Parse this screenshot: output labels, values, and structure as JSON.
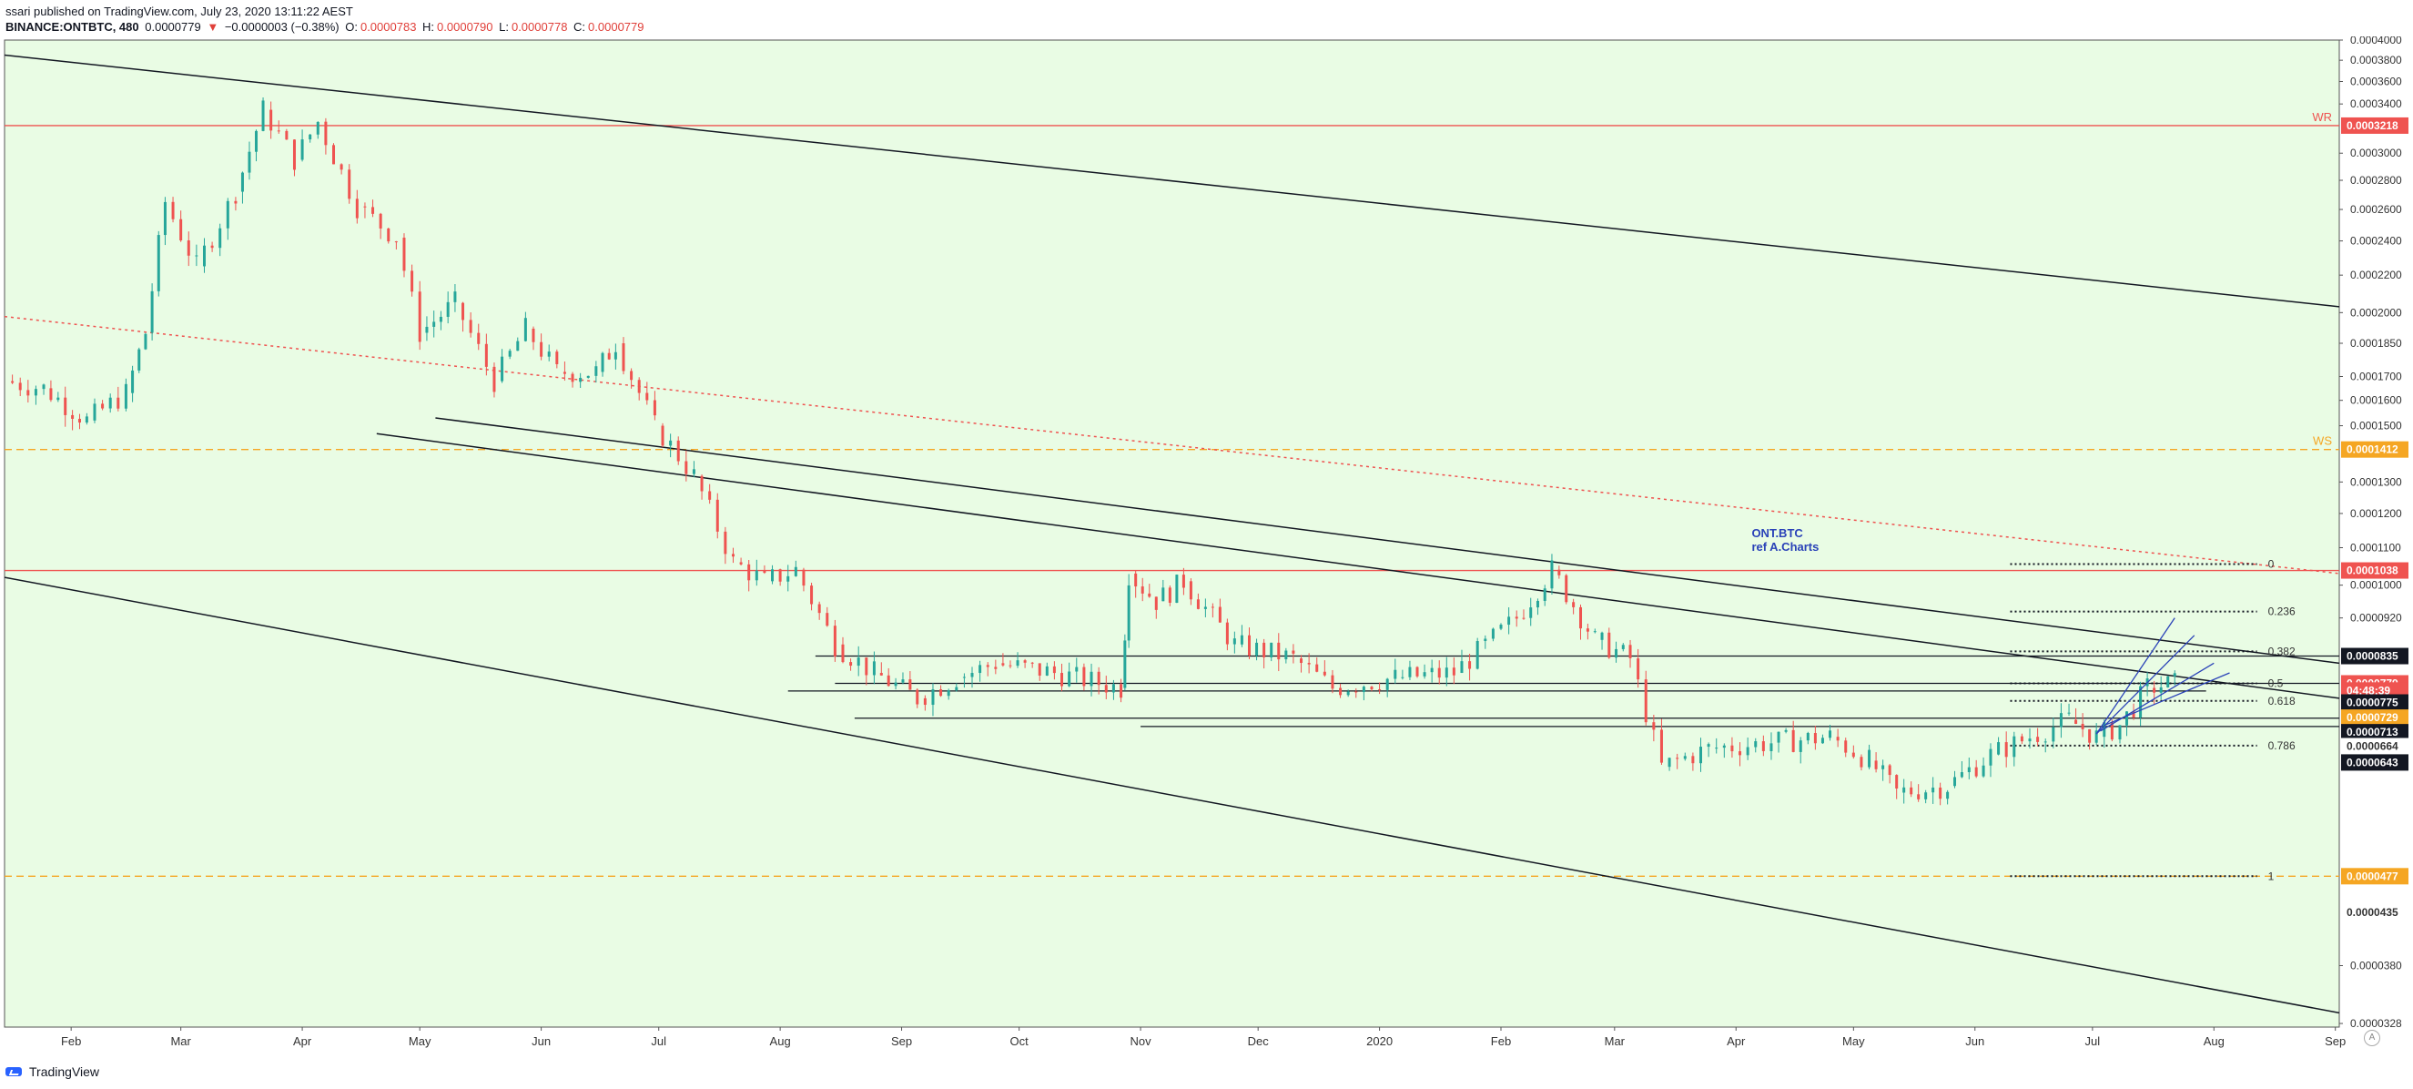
{
  "header": {
    "published": "ssari published on TradingView.com, July 23, 2020 13:11:22 AEST",
    "symbol": "BINANCE:ONTBTC, 480",
    "last": "0.0000779",
    "arrow": "▼",
    "change": "−0.0000003 (−0.38%)",
    "o_label": "O:",
    "o_value": "0.0000783",
    "h_label": "H:",
    "h_value": "0.0000790",
    "l_label": "L:",
    "l_value": "0.0000778",
    "c_label": "C:",
    "c_value": "0.0000779"
  },
  "footer": {
    "brand": "TradingView",
    "auto_label": "A"
  },
  "colors": {
    "background": "#e9fce4",
    "red": "#ef5350",
    "orange": "#f5a623",
    "black": "#131722",
    "blue": "#2a42b8",
    "up": "#26a69a",
    "down": "#ef5350"
  },
  "chart_data": {
    "type": "line",
    "title": "",
    "y_scale": "log",
    "y_range": [
      3.25e-05,
      0.0004
    ],
    "x_range": [
      "2019-01-15",
      "2020-09-02"
    ],
    "y_ticks": [
      "0.0004000",
      "0.0003800",
      "0.0003600",
      "0.0003400",
      "0.0003000",
      "0.0002800",
      "0.0002600",
      "0.0002400",
      "0.0002200",
      "0.0002000",
      "0.0001850",
      "0.0001700",
      "0.0001600",
      "0.0001500",
      "0.0001300",
      "0.0001200",
      "0.0001100",
      "0.0001000",
      "0.0000920",
      "0.0000380",
      "0.0000328"
    ],
    "x_ticks": [
      {
        "label": "Feb",
        "date": "2019-02-01"
      },
      {
        "label": "Mar",
        "date": "2019-03-01"
      },
      {
        "label": "Apr",
        "date": "2019-04-01"
      },
      {
        "label": "May",
        "date": "2019-05-01"
      },
      {
        "label": "Jun",
        "date": "2019-06-01"
      },
      {
        "label": "Jul",
        "date": "2019-07-01"
      },
      {
        "label": "Aug",
        "date": "2019-08-01"
      },
      {
        "label": "Sep",
        "date": "2019-09-01"
      },
      {
        "label": "Oct",
        "date": "2019-10-01"
      },
      {
        "label": "Nov",
        "date": "2019-11-01"
      },
      {
        "label": "Dec",
        "date": "2019-12-01"
      },
      {
        "label": "2020",
        "date": "2020-01-01"
      },
      {
        "label": "Feb",
        "date": "2020-02-01"
      },
      {
        "label": "Mar",
        "date": "2020-03-01"
      },
      {
        "label": "Apr",
        "date": "2020-04-01"
      },
      {
        "label": "May",
        "date": "2020-05-01"
      },
      {
        "label": "Jun",
        "date": "2020-06-01"
      },
      {
        "label": "Jul",
        "date": "2020-07-01"
      },
      {
        "label": "Aug",
        "date": "2020-08-01"
      },
      {
        "label": "Sep",
        "date": "2020-09-01"
      }
    ],
    "series": [
      {
        "values": [
          [
            "2019-01-15",
            0.000168
          ],
          [
            "2019-01-25",
            0.000165
          ],
          [
            "2019-02-05",
            0.000152
          ],
          [
            "2019-02-15",
            0.000163
          ],
          [
            "2019-02-20",
            0.00019
          ],
          [
            "2019-02-25",
            0.000265
          ],
          [
            "2019-03-05",
            0.000225
          ],
          [
            "2019-03-15",
            0.000272
          ],
          [
            "2019-03-22",
            0.000335
          ],
          [
            "2019-03-30",
            0.000295
          ],
          [
            "2019-04-05",
            0.000325
          ],
          [
            "2019-04-15",
            0.000262
          ],
          [
            "2019-04-25",
            0.000242
          ],
          [
            "2019-05-01",
            0.00019
          ],
          [
            "2019-05-10",
            0.000205
          ],
          [
            "2019-05-20",
            0.000168
          ],
          [
            "2019-05-28",
            0.000192
          ],
          [
            "2019-06-05",
            0.000172
          ],
          [
            "2019-06-15",
            0.000172
          ],
          [
            "2019-06-20",
            0.000185
          ],
          [
            "2019-06-30",
            0.00015
          ],
          [
            "2019-07-10",
            0.000132
          ],
          [
            "2019-07-20",
            0.000106
          ],
          [
            "2019-07-28",
            0.000101
          ],
          [
            "2019-08-05",
            0.000104
          ],
          [
            "2019-08-15",
            8.6e-05
          ],
          [
            "2019-08-25",
            8e-05
          ],
          [
            "2019-09-05",
            7.5e-05
          ],
          [
            "2019-09-15",
            7.9e-05
          ],
          [
            "2019-09-25",
            8.2e-05
          ],
          [
            "2019-10-10",
            8e-05
          ],
          [
            "2019-10-27",
            7.7e-05
          ],
          [
            "2019-10-29",
            0.000103
          ],
          [
            "2019-11-05",
            9.6e-05
          ],
          [
            "2019-11-12",
            0.000101
          ],
          [
            "2019-11-25",
            8.6e-05
          ],
          [
            "2019-12-10",
            8.3e-05
          ],
          [
            "2019-12-20",
            7.7e-05
          ],
          [
            "2020-01-05",
            7.9e-05
          ],
          [
            "2020-01-20",
            8e-05
          ],
          [
            "2020-02-05",
            9.2e-05
          ],
          [
            "2020-02-14",
            0.000104
          ],
          [
            "2020-02-25",
            8.7e-05
          ],
          [
            "2020-03-05",
            8.3e-05
          ],
          [
            "2020-03-13",
            6.3e-05
          ],
          [
            "2020-03-25",
            6.6e-05
          ],
          [
            "2020-04-10",
            6.7e-05
          ],
          [
            "2020-04-25",
            6.8e-05
          ],
          [
            "2020-05-05",
            6.4e-05
          ],
          [
            "2020-05-12",
            5.9e-05
          ],
          [
            "2020-05-25",
            6e-05
          ],
          [
            "2020-06-05",
            6.5e-05
          ],
          [
            "2020-06-15",
            6.8e-05
          ],
          [
            "2020-06-25",
            7.1e-05
          ],
          [
            "2020-07-02",
            6.8e-05
          ],
          [
            "2020-07-08",
            7e-05
          ],
          [
            "2020-07-15",
            7.7e-05
          ],
          [
            "2020-07-22",
            7.79e-05
          ]
        ]
      }
    ],
    "trendlines": [
      {
        "from": [
          "2019-01-15",
          0.000385
        ],
        "to": [
          "2020-09-02",
          0.000203
        ],
        "style": "solid",
        "color": "black"
      },
      {
        "from": [
          "2019-01-15",
          0.000198
        ],
        "to": [
          "2020-09-02",
          0.000103
        ],
        "style": "dotted",
        "color": "red"
      },
      {
        "from": [
          "2019-05-05",
          0.000153
        ],
        "to": [
          "2020-09-02",
          8.2e-05
        ],
        "style": "solid",
        "color": "black"
      },
      {
        "from": [
          "2019-04-20",
          0.000147
        ],
        "to": [
          "2020-09-02",
          7.5e-05
        ],
        "style": "solid",
        "color": "black"
      },
      {
        "from": [
          "2019-01-15",
          0.000102
        ],
        "to": [
          "2020-09-02",
          3.37e-05
        ],
        "style": "solid",
        "color": "black"
      }
    ],
    "horizontal_lines": [
      {
        "y": 0.0003218,
        "style": "solid",
        "color": "red",
        "label": "WR"
      },
      {
        "y": 0.0001412,
        "style": "dashed",
        "color": "orange",
        "label": "WS"
      },
      {
        "y": 0.0001038,
        "style": "solid",
        "color": "red"
      },
      {
        "y": 4.77e-05,
        "style": "dashed",
        "color": "orange"
      }
    ],
    "range_lines": [
      {
        "y": 8.35e-05,
        "from": "2019-08-10",
        "to": "2020-09-02"
      },
      {
        "y": 7.79e-05,
        "from": "2019-08-15",
        "to": "2020-09-02"
      },
      {
        "y": 7.64e-05,
        "from": "2019-08-03",
        "to": "2020-07-30"
      },
      {
        "y": 7.13e-05,
        "from": "2019-08-20",
        "to": "2020-09-02"
      },
      {
        "y": 6.98e-05,
        "from": "2019-11-01",
        "to": "2020-09-02"
      }
    ],
    "fib_levels": [
      {
        "label": "0",
        "y": 0.0001055
      },
      {
        "label": "0.236",
        "y": 9.35e-05
      },
      {
        "label": "0.382",
        "y": 8.45e-05
      },
      {
        "label": "0.5",
        "y": 7.79e-05
      },
      {
        "label": "0.618",
        "y": 7.45e-05
      },
      {
        "label": "0.786",
        "y": 6.65e-05
      },
      {
        "label": "1",
        "y": 4.77e-05
      }
    ],
    "fib_range": [
      "2020-06-10",
      "2020-08-12"
    ],
    "annotation": {
      "lines": [
        "ONT.BTC",
        "ref A.Charts"
      ],
      "at": [
        "2020-04-05",
        0.000113
      ]
    },
    "price_badges": [
      {
        "text": "0.0003218",
        "y": 0.0003218,
        "bg": "red"
      },
      {
        "text": "0.0001412",
        "y": 0.0001412,
        "bg": "orange"
      },
      {
        "text": "0.0001038",
        "y": 0.0001038,
        "bg": "red"
      },
      {
        "text": "0.0000835",
        "y": 8.35e-05,
        "bg": "black"
      },
      {
        "text": "0.0000779",
        "y": 7.79e-05,
        "bg": "red"
      },
      {
        "text": "04:48:39",
        "y": 7.65e-05,
        "bg": "red"
      },
      {
        "text": "0.0000775",
        "y": 7.42e-05,
        "bg": "black"
      },
      {
        "text": "0.0000729",
        "y": 7.14e-05,
        "bg": "orange"
      },
      {
        "text": "0.0000713",
        "y": 6.88e-05,
        "bg": "black"
      },
      {
        "text": "0.0000664",
        "y": 6.64e-05,
        "bg": "white"
      },
      {
        "text": "0.0000643",
        "y": 6.37e-05,
        "bg": "black"
      },
      {
        "text": "0.0000477",
        "y": 4.77e-05,
        "bg": "orange"
      },
      {
        "text": "0.0000435",
        "y": 4.35e-05,
        "bg": "white"
      }
    ]
  }
}
